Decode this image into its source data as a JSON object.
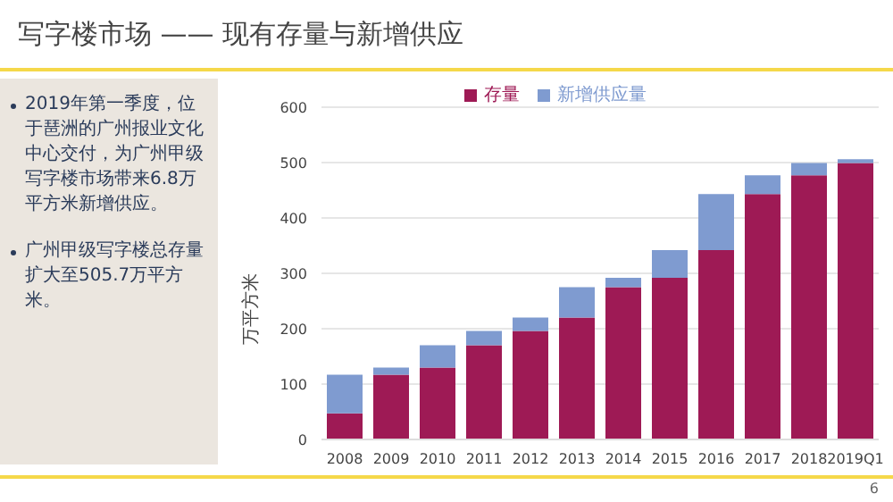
{
  "chart_data": {
    "type": "bar",
    "title": "写字楼市场 —— 现有存量与新增供应",
    "ylabel": "万平方米",
    "categories": [
      "2008",
      "2009",
      "2010",
      "2011",
      "2012",
      "2013",
      "2014",
      "2015",
      "2016",
      "2017",
      "2018",
      "2019Q1"
    ],
    "series": [
      {
        "name": "存量",
        "color": "#9e1a55",
        "values": [
          47,
          117,
          130,
          170,
          196,
          220,
          275,
          292,
          342,
          443,
          477,
          499
        ]
      },
      {
        "name": "新增供应量",
        "color": "#7f9bd0",
        "values": [
          70,
          13,
          40,
          26,
          24,
          55,
          17,
          50,
          101,
          34,
          22,
          7
        ]
      }
    ],
    "stacked": true,
    "ylim": [
      0,
      600
    ],
    "yticks": [
      0,
      100,
      200,
      300,
      400,
      500,
      600
    ],
    "grid": "y",
    "legend": "top",
    "annotations": [
      "2019年第一季度，位于琶洲的广州报业文化中心交付，为广州甲级写字楼市场带来6.8万平方米新增供应。",
      "广州甲级写字楼总存量扩大至505.7万平方米。",
      "6"
    ]
  }
}
